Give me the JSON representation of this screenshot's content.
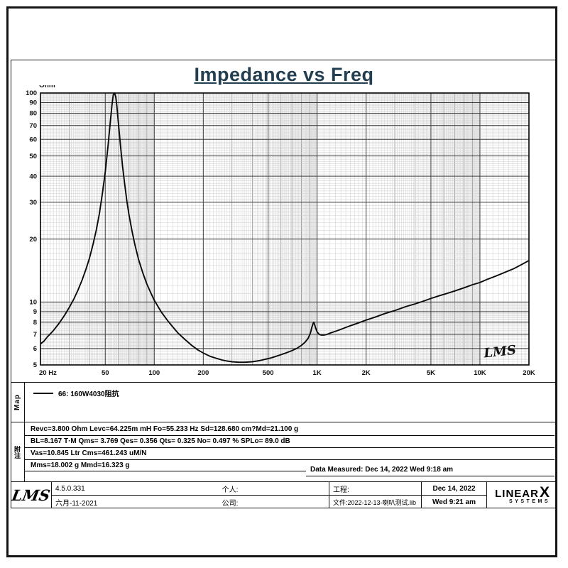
{
  "page": {
    "title": "Impedance vs Freq"
  },
  "chart_data": {
    "type": "line",
    "title": "Impedance vs Freq",
    "x_scale": "log",
    "y_scale": "log",
    "xlim": [
      20,
      20000
    ],
    "ylim": [
      5,
      100
    ],
    "ylabel": "Ohm",
    "grid": "dense log-log",
    "watermark": "LMS",
    "x_ticks": [
      {
        "value": 20,
        "label": "20 Hz"
      },
      {
        "value": 50,
        "label": "50"
      },
      {
        "value": 100,
        "label": "100"
      },
      {
        "value": 200,
        "label": "200"
      },
      {
        "value": 500,
        "label": "500"
      },
      {
        "value": 1000,
        "label": "1K"
      },
      {
        "value": 2000,
        "label": "2K"
      },
      {
        "value": 5000,
        "label": "5K"
      },
      {
        "value": 10000,
        "label": "10K"
      },
      {
        "value": 20000,
        "label": "20K"
      }
    ],
    "y_ticks": [
      100,
      90,
      80,
      70,
      60,
      50,
      40,
      30,
      20,
      10,
      9,
      8,
      7,
      6,
      5
    ],
    "series": [
      {
        "name": "66: 160W4030阻抗",
        "points": [
          [
            20,
            6.3
          ],
          [
            21,
            6.5
          ],
          [
            22,
            6.8
          ],
          [
            24,
            7.3
          ],
          [
            26,
            7.9
          ],
          [
            28,
            8.6
          ],
          [
            30,
            9.4
          ],
          [
            32,
            10.3
          ],
          [
            34,
            11.4
          ],
          [
            36,
            12.7
          ],
          [
            38,
            14.3
          ],
          [
            40,
            16.2
          ],
          [
            42,
            18.8
          ],
          [
            44,
            22
          ],
          [
            46,
            26.5
          ],
          [
            48,
            33
          ],
          [
            50,
            42
          ],
          [
            52,
            56
          ],
          [
            54,
            76
          ],
          [
            55,
            88
          ],
          [
            56,
            98
          ],
          [
            57,
            100
          ],
          [
            58,
            96
          ],
          [
            59,
            86
          ],
          [
            60,
            74
          ],
          [
            62,
            56
          ],
          [
            64,
            44
          ],
          [
            66,
            36
          ],
          [
            68,
            30
          ],
          [
            70,
            26
          ],
          [
            73,
            21.8
          ],
          [
            76,
            18.8
          ],
          [
            80,
            16
          ],
          [
            85,
            13.8
          ],
          [
            90,
            12.2
          ],
          [
            95,
            11.1
          ],
          [
            100,
            10.2
          ],
          [
            110,
            9.0
          ],
          [
            120,
            8.2
          ],
          [
            130,
            7.6
          ],
          [
            140,
            7.1
          ],
          [
            155,
            6.6
          ],
          [
            170,
            6.2
          ],
          [
            185,
            5.9
          ],
          [
            200,
            5.7
          ],
          [
            220,
            5.5
          ],
          [
            240,
            5.38
          ],
          [
            260,
            5.28
          ],
          [
            280,
            5.22
          ],
          [
            300,
            5.18
          ],
          [
            330,
            5.15
          ],
          [
            360,
            5.15
          ],
          [
            400,
            5.18
          ],
          [
            440,
            5.24
          ],
          [
            480,
            5.32
          ],
          [
            520,
            5.4
          ],
          [
            560,
            5.5
          ],
          [
            600,
            5.6
          ],
          [
            650,
            5.72
          ],
          [
            700,
            5.85
          ],
          [
            750,
            6.0
          ],
          [
            800,
            6.2
          ],
          [
            840,
            6.4
          ],
          [
            880,
            6.7
          ],
          [
            910,
            7.1
          ],
          [
            930,
            7.6
          ],
          [
            945,
            7.9
          ],
          [
            955,
            8.0
          ],
          [
            965,
            7.8
          ],
          [
            980,
            7.5
          ],
          [
            1000,
            7.2
          ],
          [
            1030,
            7.0
          ],
          [
            1060,
            6.95
          ],
          [
            1100,
            6.95
          ],
          [
            1150,
            7.0
          ],
          [
            1200,
            7.1
          ],
          [
            1300,
            7.25
          ],
          [
            1400,
            7.4
          ],
          [
            1600,
            7.7
          ],
          [
            1800,
            7.95
          ],
          [
            2000,
            8.2
          ],
          [
            2300,
            8.5
          ],
          [
            2600,
            8.8
          ],
          [
            3000,
            9.1
          ],
          [
            3500,
            9.5
          ],
          [
            4000,
            9.8
          ],
          [
            4500,
            10.1
          ],
          [
            5000,
            10.4
          ],
          [
            5600,
            10.7
          ],
          [
            6300,
            11.0
          ],
          [
            7000,
            11.3
          ],
          [
            8000,
            11.7
          ],
          [
            9000,
            12.1
          ],
          [
            10000,
            12.4
          ],
          [
            11000,
            12.8
          ],
          [
            12500,
            13.3
          ],
          [
            14000,
            13.8
          ],
          [
            16000,
            14.4
          ],
          [
            18000,
            15.1
          ],
          [
            20000,
            15.8
          ]
        ]
      }
    ]
  },
  "map": {
    "side_label": "Map",
    "legend_label": "66: 160W4030阻抗"
  },
  "notes": {
    "side_label": "附注",
    "rows": [
      "Revc=3.800 Ohm  Levc=64.225m mH  Fo=55.233 Hz  Sd=128.680 cm?Md=21.100 g",
      "BL=8.167 T·M  Qms= 3.769  Qes= 0.356  Qts= 0.325  No= 0.497 %  SPLo= 89.0 dB",
      "Vas=10.845 Ltr  Cms=461.243 uM/N",
      "Mms=18.002 g  Mmd=16.323 g"
    ],
    "data_measured": "Data Measured: Dec 14, 2022  Wed  9:18 am"
  },
  "footer": {
    "lms_logo": "LMS",
    "version": "4.5.0.331",
    "version_date": "六月-11-2021",
    "personal_label": "个人:",
    "company_label": "公司:",
    "project_label": "工程:",
    "file_label": "文件:2022-12-13-喇叭测试.lib",
    "date": "Dec 14, 2022",
    "time": "Wed  9:21 am",
    "brand_1": "LINEAR",
    "brand_2": "X",
    "brand_sub": "SYSTEMS"
  }
}
